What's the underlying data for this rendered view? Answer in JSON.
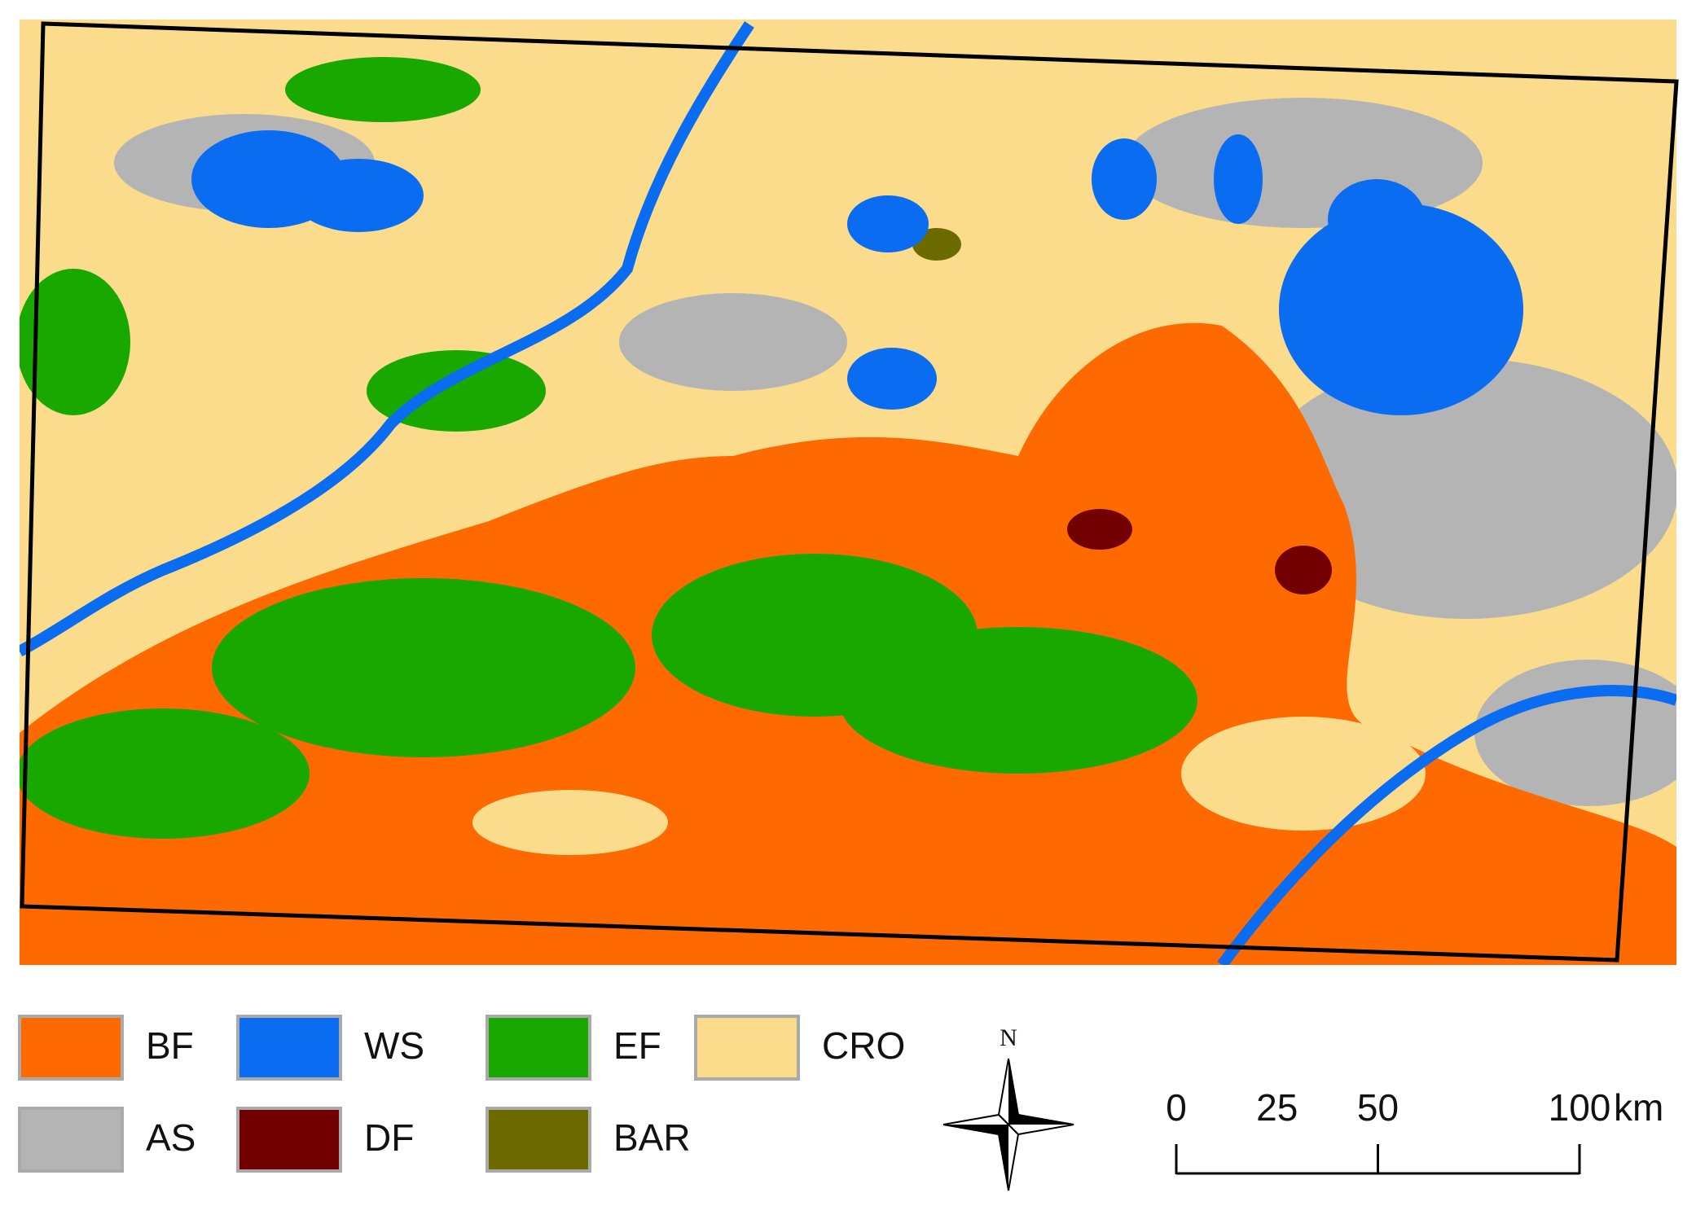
{
  "legend": [
    {
      "label": "BF",
      "color": "#ff6a00"
    },
    {
      "label": "WS",
      "color": "#0a6cf0"
    },
    {
      "label": "EF",
      "color": "#18a800"
    },
    {
      "label": "CRO",
      "color": "#fbdc8c"
    },
    {
      "label": "AS",
      "color": "#b4b4b4"
    },
    {
      "label": "DF",
      "color": "#730000"
    },
    {
      "label": "BAR",
      "color": "#6b6b00"
    }
  ],
  "north_arrow": "N",
  "scale_bar": {
    "ticks": [
      0,
      25,
      50,
      100
    ],
    "tick_marks": [
      0,
      50,
      100
    ],
    "unit": "km"
  }
}
